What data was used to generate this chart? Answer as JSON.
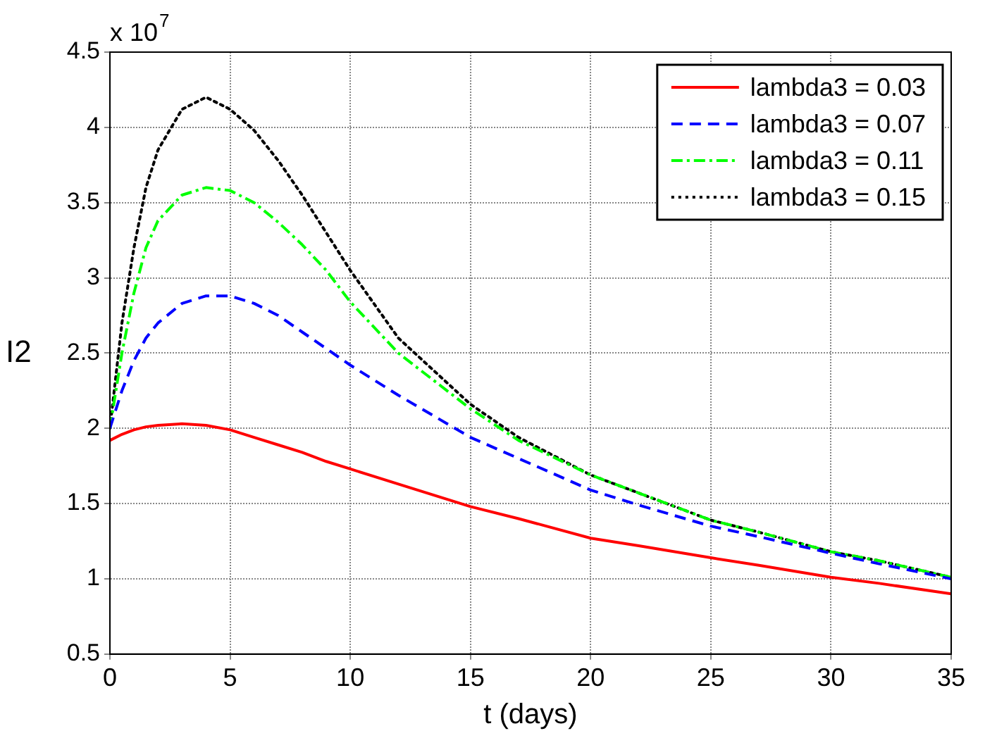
{
  "chart_data": {
    "type": "line",
    "xlabel": "t (days)",
    "ylabel": "I2",
    "annotations": [
      "x 10$^{7}$"
    ],
    "xlim": [
      0,
      35
    ],
    "xticks": [
      0,
      5,
      10,
      15,
      20,
      25,
      30,
      35
    ],
    "ylim": [
      0.5,
      4.5
    ],
    "yticks": [
      0.5,
      1,
      1.5,
      2,
      2.5,
      3,
      3.5,
      4,
      4.5
    ],
    "grid": true,
    "legend": "top right",
    "marker": "none",
    "x": [
      0,
      0.5,
      1,
      1.5,
      2,
      3,
      4,
      5,
      6,
      7,
      8,
      9,
      10,
      12,
      15,
      17,
      20,
      22,
      25,
      27,
      30,
      32,
      35
    ],
    "series": [
      {
        "name": "lambda3 = 0.03",
        "color": "#ff0000",
        "line_style": "solid",
        "values": [
          1.92,
          1.96,
          1.99,
          2.01,
          2.02,
          2.03,
          2.02,
          1.99,
          1.94,
          1.89,
          1.84,
          1.78,
          1.73,
          1.63,
          1.48,
          1.4,
          1.27,
          1.22,
          1.14,
          1.09,
          1.01,
          0.97,
          0.9
        ]
      },
      {
        "name": "lambda3 = 0.07",
        "color": "#0000ff",
        "line_style": "dashed",
        "values": [
          2.0,
          2.25,
          2.45,
          2.6,
          2.7,
          2.83,
          2.88,
          2.88,
          2.83,
          2.75,
          2.64,
          2.53,
          2.42,
          2.22,
          1.94,
          1.8,
          1.59,
          1.49,
          1.35,
          1.28,
          1.17,
          1.1,
          1.0
        ]
      },
      {
        "name": "lambda3 = 0.11",
        "color": "#00ff00",
        "line_style": "dashdot",
        "values": [
          2.0,
          2.5,
          2.9,
          3.2,
          3.38,
          3.55,
          3.6,
          3.58,
          3.5,
          3.37,
          3.22,
          3.05,
          2.84,
          2.5,
          2.13,
          1.92,
          1.69,
          1.57,
          1.39,
          1.31,
          1.18,
          1.12,
          1.01
        ]
      },
      {
        "name": "lambda3 = 0.15",
        "color": "#000000",
        "line_style": "dotted",
        "values": [
          2.0,
          2.7,
          3.2,
          3.6,
          3.85,
          4.12,
          4.2,
          4.12,
          3.98,
          3.78,
          3.55,
          3.3,
          3.05,
          2.6,
          2.16,
          1.94,
          1.69,
          1.57,
          1.39,
          1.31,
          1.18,
          1.12,
          1.01
        ]
      }
    ]
  }
}
